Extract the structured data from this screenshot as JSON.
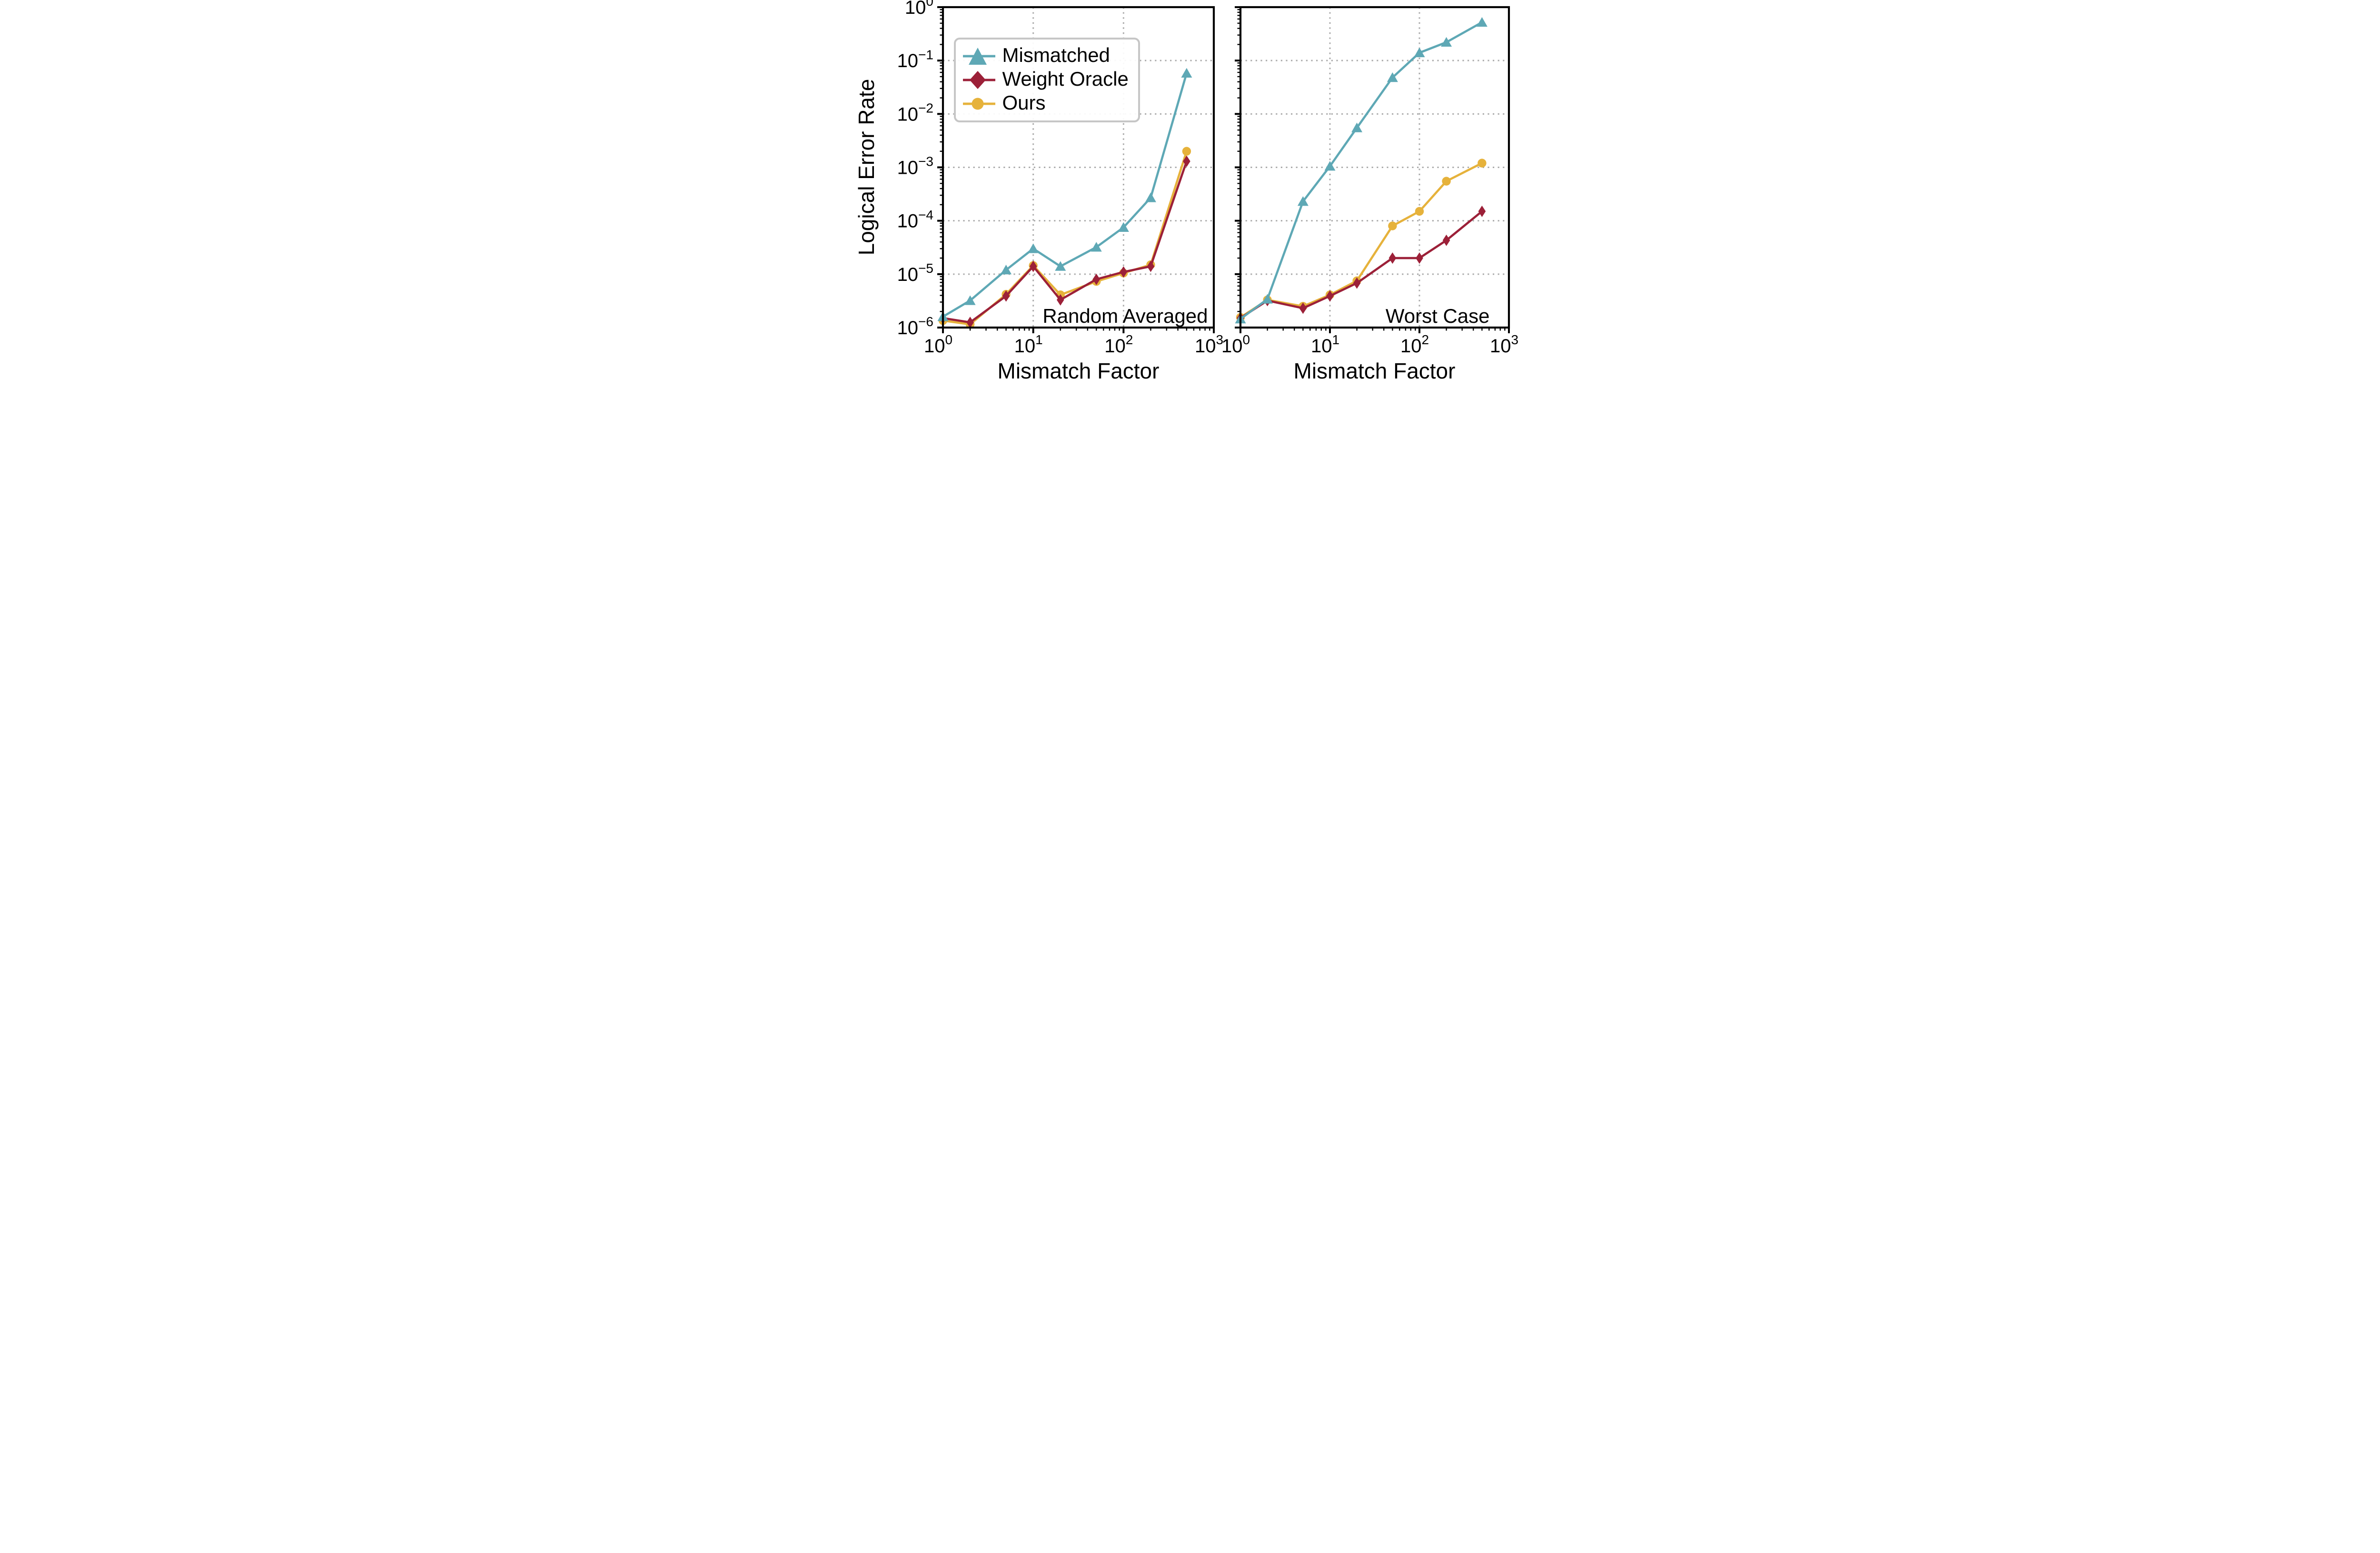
{
  "figure": {
    "ylabel": "Logical Error Rate",
    "xlabel": "Mismatch Factor",
    "background_color": "#ffffff",
    "axis_color": "#000000",
    "grid_color": "#ababab",
    "legend_border_color": "#c6c6c6",
    "y_tick_exponents": [
      0,
      -1,
      -2,
      -3,
      -4,
      -5,
      -6
    ],
    "x_tick_exponents": [
      0,
      1,
      2,
      3
    ]
  },
  "chart_data": [
    {
      "type": "line",
      "panel": "left",
      "annotation": "Random Averaged",
      "xlabel": "Mismatch Factor",
      "ylabel": "Logical Error Rate",
      "xscale": "log",
      "yscale": "log",
      "xlim": [
        1,
        1000
      ],
      "ylim": [
        1e-06,
        1
      ],
      "grid": "dotted",
      "legend_position": "upper left",
      "x": [
        1,
        2,
        5,
        10,
        20,
        50,
        100,
        200,
        500
      ],
      "series": [
        {
          "name": "Mismatched",
          "color": "#5ea8b5",
          "marker": "triangle",
          "values": [
            1.6e-06,
            3.2e-06,
            1.2e-05,
            3e-05,
            1.4e-05,
            3.2e-05,
            7.5e-05,
            0.00027,
            0.058
          ]
        },
        {
          "name": "Weight Oracle",
          "color": "#9c2038",
          "marker": "diamond",
          "values": [
            1.5e-06,
            1.25e-06,
            3.9e-06,
            1.4e-05,
            3.3e-06,
            8e-06,
            1.1e-05,
            1.4e-05,
            0.0013
          ]
        },
        {
          "name": "Ours",
          "color": "#e6b23b",
          "marker": "circle",
          "values": [
            1.35e-06,
            1.15e-06,
            4.2e-06,
            1.45e-05,
            4.1e-06,
            7.3e-06,
            1.05e-05,
            1.5e-05,
            0.002
          ]
        }
      ]
    },
    {
      "type": "line",
      "panel": "right",
      "annotation": "Worst Case",
      "xlabel": "Mismatch Factor",
      "ylabel": "Logical Error Rate",
      "xscale": "log",
      "yscale": "log",
      "xlim": [
        1,
        1000
      ],
      "ylim": [
        1e-06,
        1
      ],
      "grid": "dotted",
      "x": [
        1,
        2,
        5,
        10,
        20,
        50,
        100,
        200,
        500
      ],
      "series": [
        {
          "name": "Mismatched",
          "color": "#5ea8b5",
          "marker": "triangle",
          "values": [
            1.45e-06,
            3.4e-06,
            0.00023,
            0.00105,
            0.0055,
            0.048,
            0.14,
            0.22,
            0.52
          ]
        },
        {
          "name": "Weight Oracle",
          "color": "#9c2038",
          "marker": "diamond",
          "values": [
            1.5e-06,
            3.2e-06,
            2.3e-06,
            3.9e-06,
            6.8e-06,
            2e-05,
            2e-05,
            4.3e-05,
            0.00015
          ]
        },
        {
          "name": "Ours",
          "color": "#e6b23b",
          "marker": "circle",
          "values": [
            1.55e-06,
            3.3e-06,
            2.5e-06,
            4.1e-06,
            7.5e-06,
            8e-05,
            0.00015,
            0.00055,
            0.0012
          ]
        }
      ]
    }
  ]
}
